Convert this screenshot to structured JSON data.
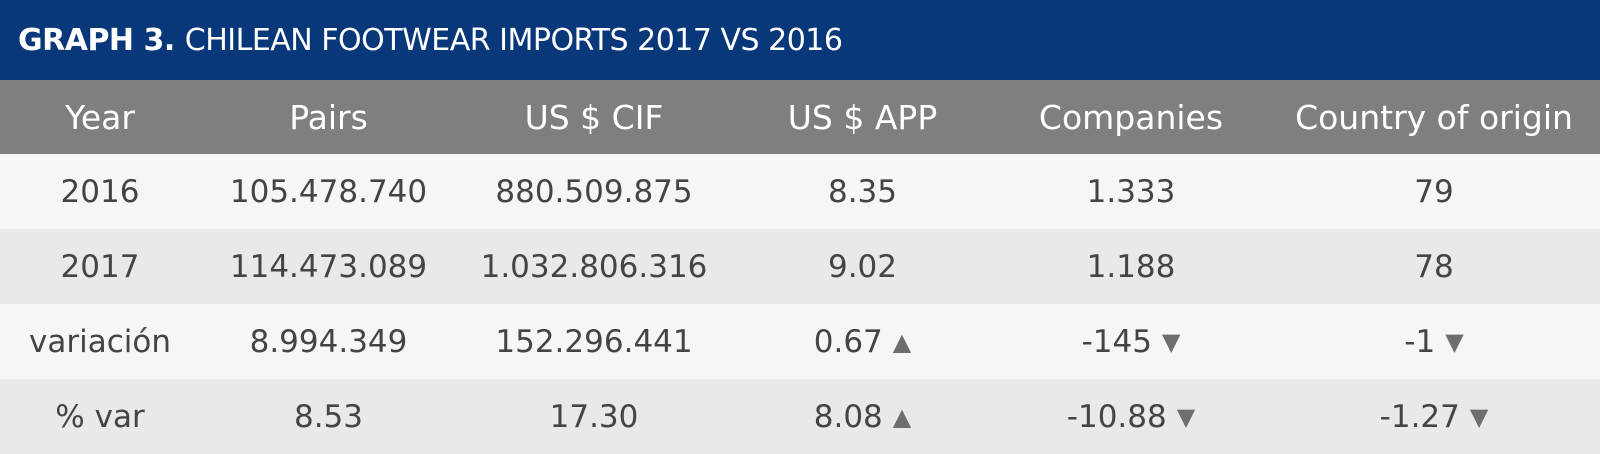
{
  "title": {
    "bold": "GRAPH 3.",
    "text": "CHILEAN FOOTWEAR IMPORTS 2017 VS 2016"
  },
  "colors": {
    "title_bg": "#08377a",
    "header_bg": "#7f7f7f",
    "row_odd": "#f6f6f6",
    "row_even": "#e9e9e9"
  },
  "icons": {
    "up": "triangle-up-icon",
    "down": "triangle-down-icon"
  },
  "chart_data": {
    "type": "table",
    "title": "GRAPH 3. CHILEAN FOOTWEAR IMPORTS 2017 VS 2016",
    "columns": [
      "Year",
      "Pairs",
      "US $ CIF",
      "US $ APP",
      "Companies",
      "Country of origin"
    ],
    "rows": [
      [
        {
          "text": "2016"
        },
        {
          "text": "105.478.740"
        },
        {
          "text": "880.509.875"
        },
        {
          "text": "8.35"
        },
        {
          "text": "1.333"
        },
        {
          "text": "79"
        }
      ],
      [
        {
          "text": "2017"
        },
        {
          "text": "114.473.089"
        },
        {
          "text": "1.032.806.316"
        },
        {
          "text": "9.02"
        },
        {
          "text": "1.188"
        },
        {
          "text": "78"
        }
      ],
      [
        {
          "text": "variación"
        },
        {
          "text": "8.994.349"
        },
        {
          "text": "152.296.441"
        },
        {
          "text": "0.67",
          "arrow": "up"
        },
        {
          "text": "-145",
          "arrow": "down"
        },
        {
          "text": "-1",
          "arrow": "down"
        }
      ],
      [
        {
          "text": "% var"
        },
        {
          "text": "8.53"
        },
        {
          "text": "17.30"
        },
        {
          "text": "8.08",
          "arrow": "up"
        },
        {
          "text": "-10.88",
          "arrow": "down"
        },
        {
          "text": "-1.27",
          "arrow": "down"
        }
      ]
    ]
  }
}
